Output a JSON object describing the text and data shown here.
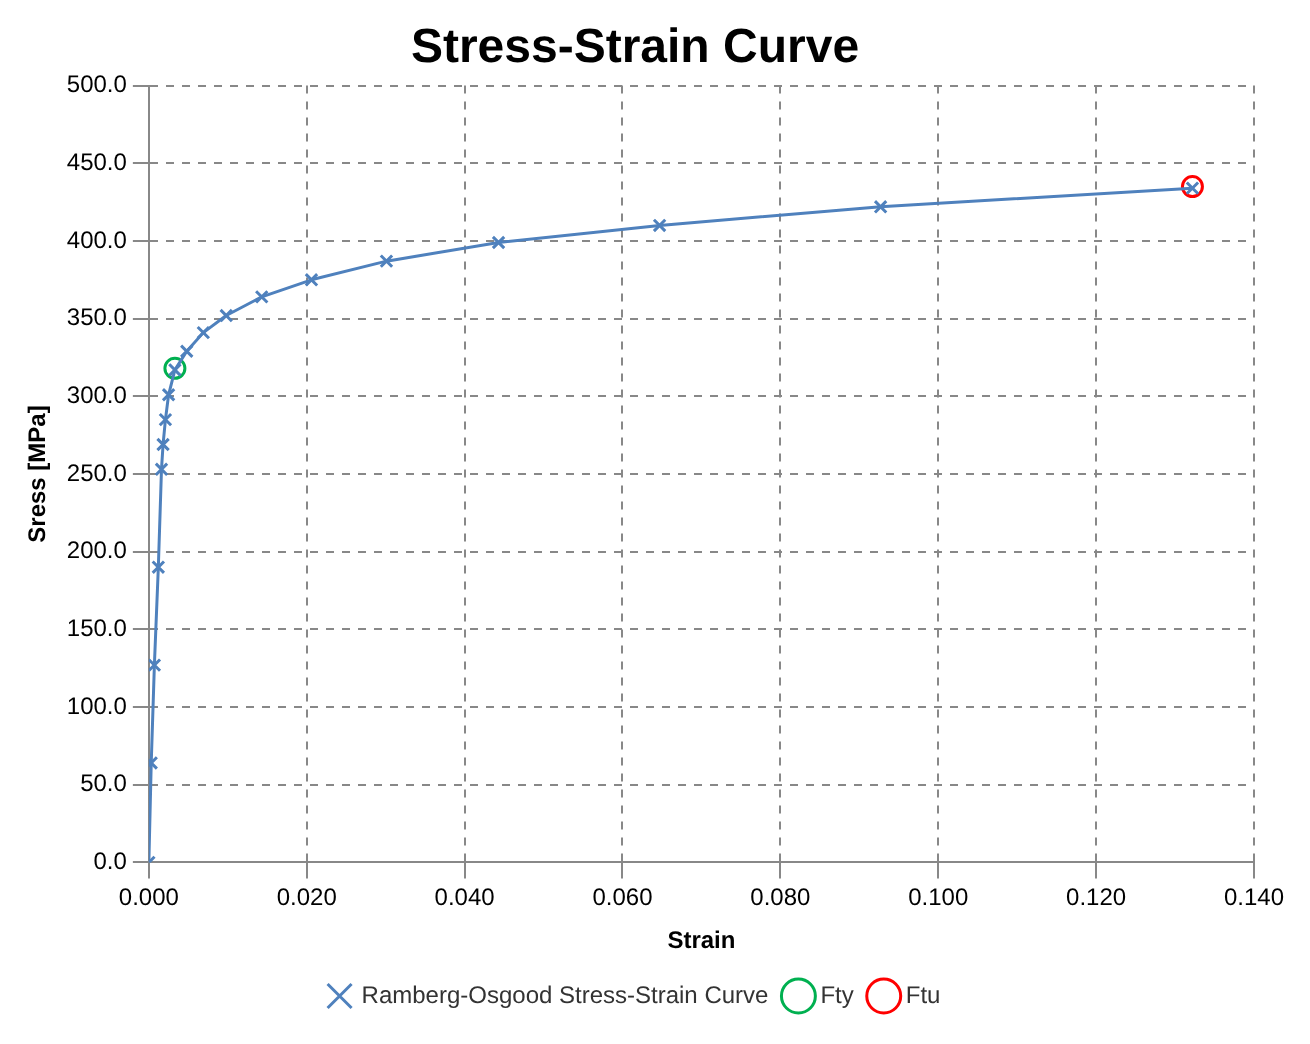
{
  "chart_data": {
    "type": "line",
    "title": "Stress-Strain Curve",
    "xlabel": "Strain",
    "ylabel": "Sress [MPa]",
    "series": [
      {
        "name": "Ramberg-Osgood Stress-Strain Curve",
        "type": "line",
        "color": "#4f81bd",
        "marker": "cross",
        "x": [
          0,
          0.0003,
          0.0007,
          0.0012,
          0.0016,
          0.0018,
          0.0021,
          0.0025,
          0.0033,
          0.0048,
          0.0069,
          0.0098,
          0.0143,
          0.0206,
          0.0301,
          0.0443,
          0.0647,
          0.0927,
          0.1322
        ],
        "values": [
          0,
          64,
          127,
          190,
          253,
          269,
          285,
          301,
          317,
          329,
          341,
          352,
          364,
          375,
          387,
          399,
          410,
          422,
          434
        ]
      },
      {
        "name": "Fty",
        "type": "scatter",
        "color": "#00b050",
        "marker": "circle",
        "x": [
          0.0033
        ],
        "values": [
          318
        ]
      },
      {
        "name": "Ftu",
        "type": "scatter",
        "color": "#ff0000",
        "marker": "circle",
        "x": [
          0.1322
        ],
        "values": [
          435
        ]
      }
    ],
    "xlim": [
      0,
      0.14
    ],
    "xticks": [
      {
        "value": 0,
        "label": "0.000"
      },
      {
        "value": 0.02,
        "label": "0.020"
      },
      {
        "value": 0.04,
        "label": "0.040"
      },
      {
        "value": 0.06,
        "label": "0.060"
      },
      {
        "value": 0.08,
        "label": "0.080"
      },
      {
        "value": 0.1,
        "label": "0.100"
      },
      {
        "value": 0.12,
        "label": "0.120"
      },
      {
        "value": 0.14,
        "label": "0.140"
      }
    ],
    "ylim": [
      0,
      500
    ],
    "yticks": [
      {
        "value": 0,
        "label": "0.0"
      },
      {
        "value": 50,
        "label": "50.0"
      },
      {
        "value": 100,
        "label": "100.0"
      },
      {
        "value": 150,
        "label": "150.0"
      },
      {
        "value": 200,
        "label": "200.0"
      },
      {
        "value": 250,
        "label": "250.0"
      },
      {
        "value": 300,
        "label": "300.0"
      },
      {
        "value": 350,
        "label": "350.0"
      },
      {
        "value": 400,
        "label": "400.0"
      },
      {
        "value": 450,
        "label": "450.0"
      },
      {
        "value": 500,
        "label": "500.0"
      }
    ],
    "grid": true,
    "legend": "bottom"
  }
}
